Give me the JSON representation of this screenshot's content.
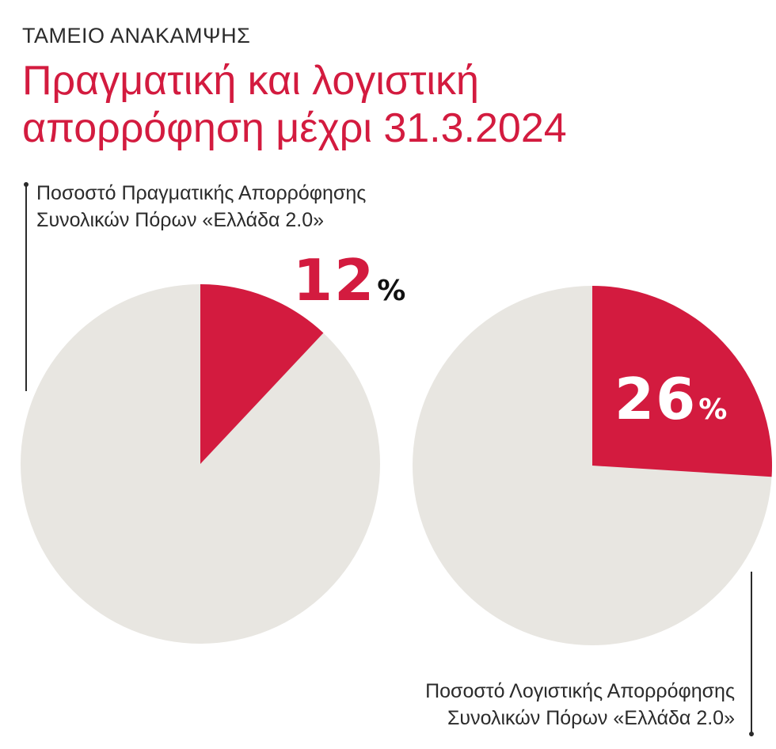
{
  "header": {
    "kicker": "ΤΑΜΕΙΟ ΑΝΑΚΑΜΨΗΣ",
    "title_line1": "Πραγματική και λογιστική",
    "title_line2": "απορρόφηση μέχρι 31.3.2024"
  },
  "colors": {
    "accent": "#d31b3f",
    "remainder": "#e8e6e1",
    "text": "#2b2b2b"
  },
  "chart_data": [
    {
      "type": "pie",
      "label_line1": "Ποσοστό Πραγματικής Απορρόφησης",
      "label_line2": "Συνολικών Πόρων «Ελλάδα 2.0»",
      "value": 12,
      "value_text": "12",
      "unit": "%"
    },
    {
      "type": "pie",
      "label_line1": "Ποσοστό Λογιστικής Απορρόφησης",
      "label_line2": "Συνολικών Πόρων «Ελλάδα 2.0»",
      "value": 26,
      "value_text": "26",
      "unit": "%"
    }
  ]
}
